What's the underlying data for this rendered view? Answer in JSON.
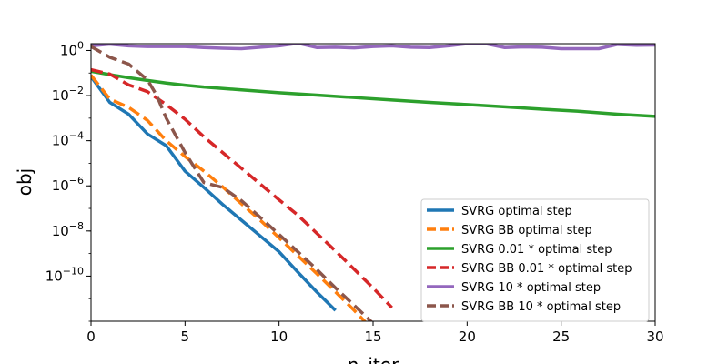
{
  "chart_data": {
    "type": "line",
    "title": "",
    "xlabel": "n_iter",
    "ylabel": "obj",
    "xlim": [
      0,
      30
    ],
    "ylim": [
      1e-12,
      2
    ],
    "yscale": "log",
    "grid": false,
    "legend_loc": "lower right",
    "x_ticks": [
      0,
      5,
      10,
      15,
      20,
      25,
      30
    ],
    "x_tick_labels": [
      "0",
      "5",
      "10",
      "15",
      "20",
      "25",
      "30"
    ],
    "y_ticks": [
      1,
      0.01,
      0.0001,
      1e-06,
      1e-08,
      1e-10
    ],
    "y_tick_labels": [
      {
        "base": "10",
        "exp": "0"
      },
      {
        "base": "10",
        "exp": "−2"
      },
      {
        "base": "10",
        "exp": "−4"
      },
      {
        "base": "10",
        "exp": "−6"
      },
      {
        "base": "10",
        "exp": "−8"
      },
      {
        "base": "10",
        "exp": "−10"
      }
    ],
    "series": [
      {
        "name": "SVRG optimal step",
        "color": "#1f77b4",
        "dash": "solid",
        "x": [
          0,
          1,
          2,
          3,
          4,
          5,
          6,
          7,
          8,
          9,
          10,
          11,
          12,
          13
        ],
        "y": [
          0.07,
          0.005,
          0.0015,
          0.0002,
          6e-05,
          4.5e-06,
          8.5e-07,
          1.5e-07,
          3e-08,
          6e-09,
          1.2e-09,
          1.5e-10,
          2e-11,
          3e-12
        ]
      },
      {
        "name": "SVRG BB optimal step",
        "color": "#ff7f0e",
        "dash": "dashed",
        "x": [
          0,
          1,
          2,
          3,
          4,
          5,
          6,
          7,
          8,
          9,
          10,
          11,
          12,
          13,
          14,
          15
        ],
        "y": [
          0.08,
          0.007,
          0.003,
          0.0008,
          0.0001,
          2e-05,
          4.5e-06,
          9e-07,
          1.6e-07,
          3e-08,
          5e-09,
          8e-10,
          1.3e-10,
          2e-11,
          3e-12,
          4e-13
        ]
      },
      {
        "name": "SVRG 0.01 * optimal step",
        "color": "#2ca02c",
        "dash": "solid",
        "x": [
          0,
          1,
          2,
          3,
          4,
          5,
          6,
          8,
          10,
          12,
          14,
          16,
          18,
          20,
          22,
          24,
          26,
          28,
          30
        ],
        "y": [
          0.12,
          0.085,
          0.062,
          0.047,
          0.036,
          0.029,
          0.024,
          0.018,
          0.0135,
          0.0105,
          0.0082,
          0.0064,
          0.005,
          0.004,
          0.0032,
          0.0025,
          0.002,
          0.0015,
          0.0012
        ]
      },
      {
        "name": "SVRG BB 0.01 * optimal step",
        "color": "#d62728",
        "dash": "dashed",
        "x": [
          0,
          1,
          2,
          3,
          4,
          5,
          6,
          7,
          8,
          9,
          10,
          11,
          12,
          13,
          14,
          15,
          16
        ],
        "y": [
          0.14,
          0.09,
          0.03,
          0.015,
          0.004,
          0.0009,
          0.00015,
          3e-05,
          6e-06,
          1.2e-06,
          2.4e-07,
          5e-08,
          8e-09,
          1.3e-09,
          2e-10,
          3e-11,
          4e-12
        ]
      },
      {
        "name": "SVRG 10 * optimal step",
        "color": "#9467bd",
        "dash": "solid",
        "x": [
          0,
          1,
          2,
          3,
          4,
          5,
          6,
          7,
          8,
          9,
          10,
          11,
          12,
          13,
          14,
          15,
          16,
          17,
          18,
          19,
          20,
          21,
          22,
          23,
          24,
          25,
          26,
          27,
          28,
          29,
          30
        ],
        "y": [
          1.6,
          1.9,
          1.6,
          1.5,
          1.5,
          1.5,
          1.35,
          1.25,
          1.2,
          1.4,
          1.6,
          2.1,
          1.35,
          1.4,
          1.3,
          1.5,
          1.6,
          1.4,
          1.35,
          1.6,
          2.0,
          2.0,
          1.35,
          1.45,
          1.4,
          1.2,
          1.2,
          1.2,
          1.85,
          1.7,
          1.75
        ]
      },
      {
        "name": "SVRG BB 10 * optimal step",
        "color": "#8c564b",
        "dash": "dashed",
        "x": [
          0,
          1,
          2,
          3,
          3.5,
          4,
          5,
          6,
          7,
          8,
          9,
          10,
          11,
          12,
          13,
          14,
          15,
          15.02
        ],
        "y": [
          1.5,
          0.5,
          0.25,
          0.05,
          0.01,
          0.001,
          3e-05,
          1.4e-06,
          8.5e-07,
          2.2e-07,
          4e-08,
          7e-09,
          1.2e-09,
          2e-10,
          3e-11,
          5e-12,
          8e-13,
          5e-13
        ]
      }
    ]
  }
}
